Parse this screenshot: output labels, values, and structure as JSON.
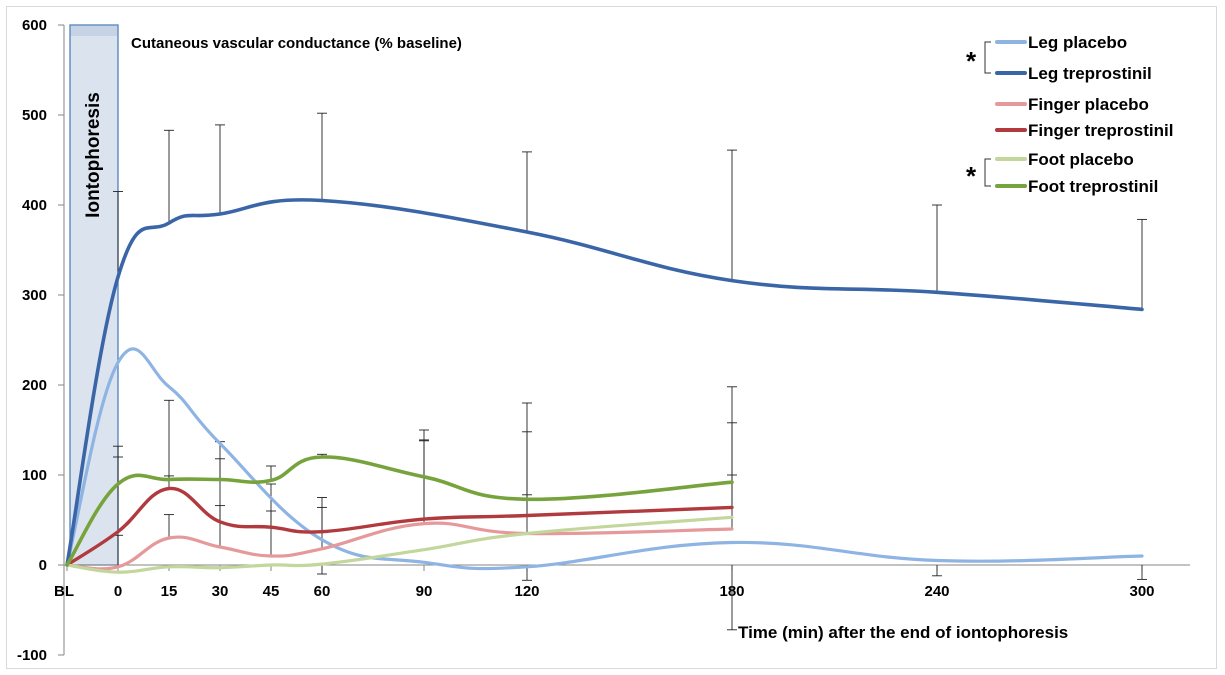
{
  "chart_data": {
    "type": "line",
    "title": "Cutaneous vascular conductance (% baseline)",
    "xlabel": "Time (min) after the end of iontophoresis",
    "ylabel": "",
    "ylim": [
      -100,
      600
    ],
    "yticks": [
      "-100",
      "0",
      "100",
      "200",
      "300",
      "400",
      "500",
      "600"
    ],
    "x_tick_labels": [
      "BL",
      "0",
      "15",
      "30",
      "45",
      "60",
      "90",
      "120",
      "180",
      "240",
      "300"
    ],
    "grid": false,
    "legend_position": "top-right",
    "shaded_region": {
      "label": "Iontophoresis",
      "x_from": "BL",
      "x_to": "0"
    },
    "significance_marker": "*",
    "series": [
      {
        "name": "Leg placebo",
        "color": "#8eb4e3",
        "width": 3.2,
        "x": [
          "BL",
          "0",
          "15",
          "30",
          "60",
          "90",
          "120",
          "180",
          "240",
          "300"
        ],
        "y": [
          0,
          225,
          198,
          135,
          28,
          3,
          -2,
          25,
          5,
          10
        ],
        "error_upper": [
          null,
          null,
          null,
          null,
          null,
          null,
          null,
          null,
          null,
          null
        ]
      },
      {
        "name": "Leg treprostinil",
        "color": "#3a66a8",
        "width": 3.6,
        "x": [
          "BL",
          "0",
          "15",
          "30",
          "60",
          "120",
          "180",
          "240",
          "300"
        ],
        "y": [
          0,
          320,
          380,
          390,
          405,
          370,
          316,
          303,
          284
        ],
        "error_upper": [
          null,
          415,
          483,
          489,
          502,
          459,
          461,
          400,
          384
        ]
      },
      {
        "name": "Finger placebo",
        "color": "#e6999b",
        "width": 3.2,
        "x": [
          "BL",
          "0",
          "15",
          "30",
          "45",
          "60",
          "90",
          "120",
          "180"
        ],
        "y": [
          0,
          -2,
          30,
          20,
          10,
          18,
          46,
          35,
          40
        ],
        "error_upper": [
          null,
          33,
          56,
          66,
          60,
          64,
          138,
          78,
          100
        ]
      },
      {
        "name": "Finger treprostinil",
        "color": "#b13a3e",
        "width": 3.4,
        "x": [
          "BL",
          "0",
          "15",
          "30",
          "45",
          "60",
          "90",
          "120",
          "180"
        ],
        "y": [
          0,
          37,
          85,
          48,
          42,
          37,
          51,
          55,
          64
        ],
        "error_upper": [
          null,
          120,
          183,
          118,
          90,
          75,
          139,
          148,
          158
        ]
      },
      {
        "name": "Foot placebo",
        "color": "#c3d69b",
        "width": 3.2,
        "x": [
          "BL",
          "0",
          "15",
          "30",
          "45",
          "60",
          "90",
          "120",
          "180"
        ],
        "y": [
          0,
          -8,
          -2,
          -3,
          0,
          1,
          17,
          35,
          53
        ],
        "error_upper": [
          null,
          null,
          null,
          null,
          null,
          null,
          null,
          null,
          null
        ]
      },
      {
        "name": "Foot treprostinil",
        "color": "#77a33c",
        "width": 3.6,
        "x": [
          "BL",
          "0",
          "15",
          "30",
          "45",
          "60",
          "90",
          "120",
          "180"
        ],
        "y": [
          0,
          90,
          95,
          95,
          94,
          120,
          98,
          73,
          92
        ],
        "error_upper": [
          null,
          132,
          99,
          137,
          110,
          123,
          150,
          180,
          198
        ]
      }
    ]
  }
}
